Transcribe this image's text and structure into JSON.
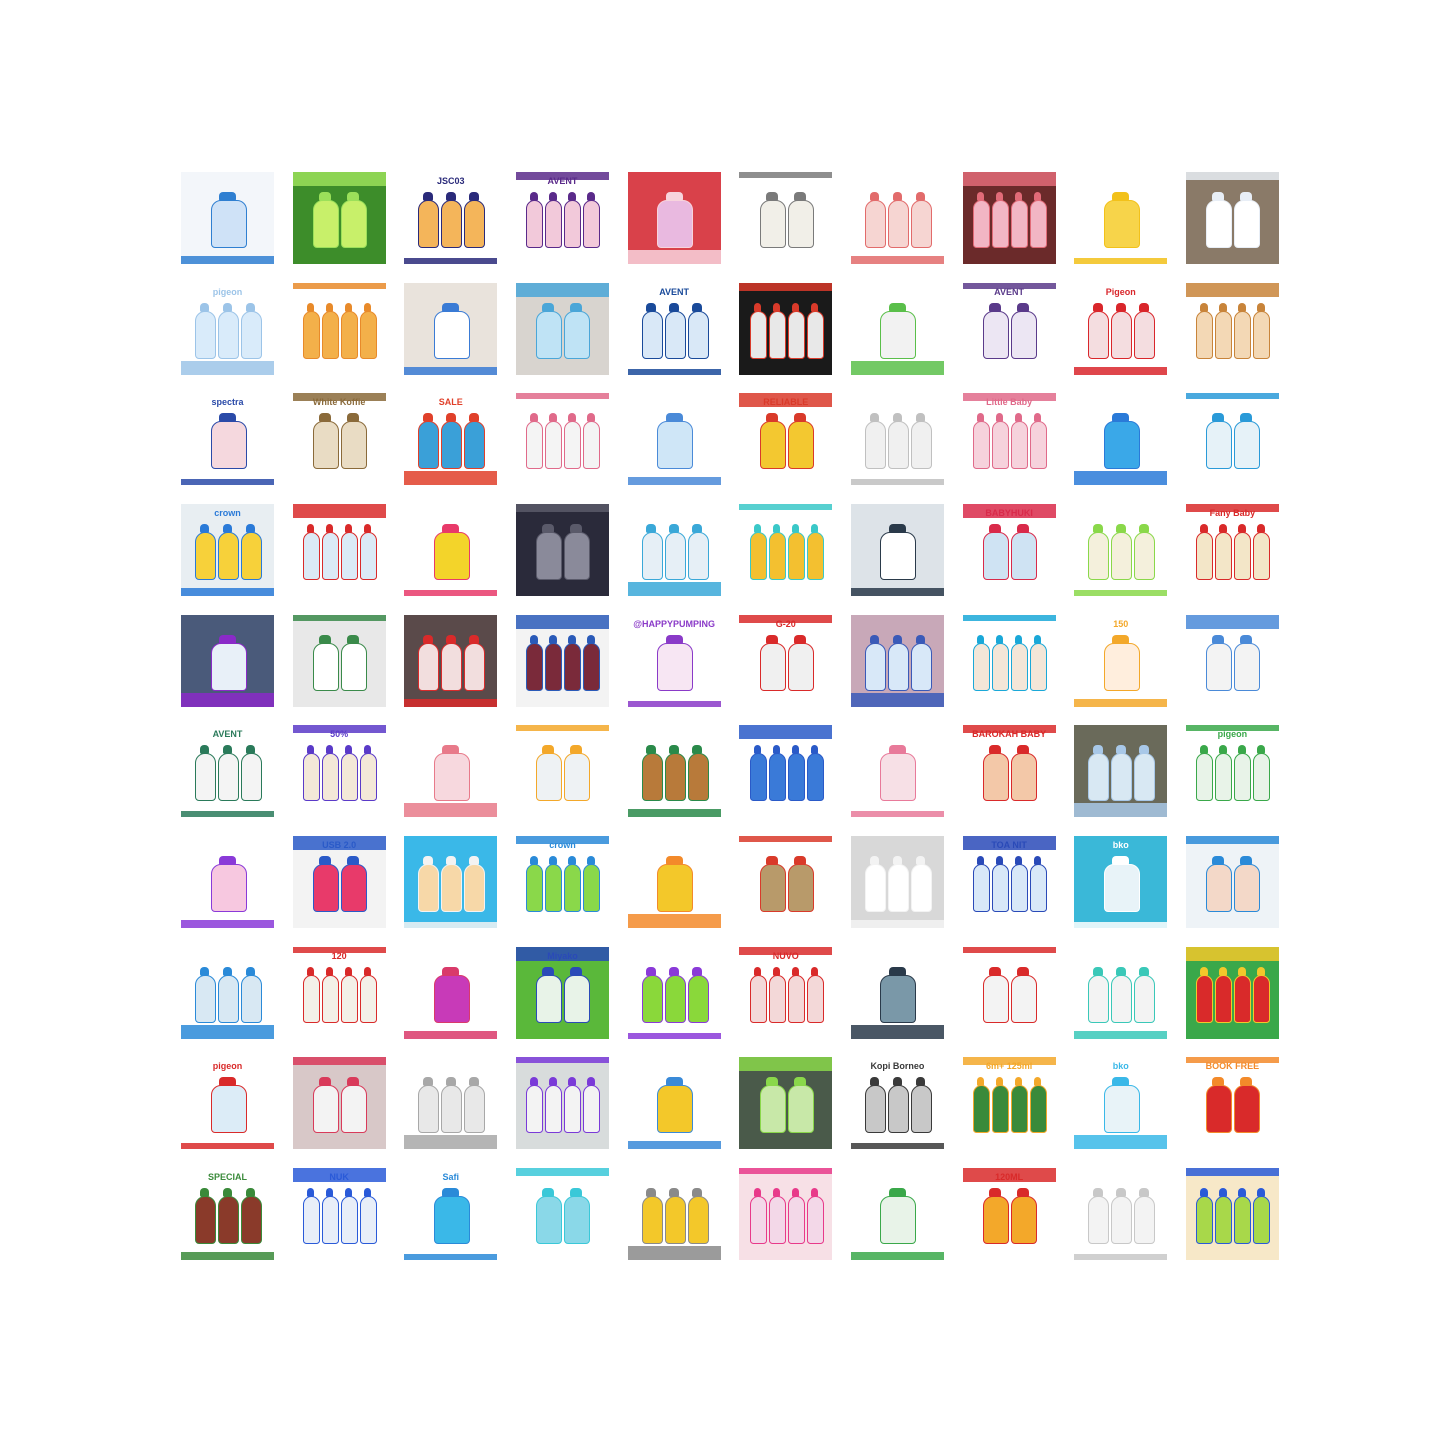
{
  "tiles": [
    {
      "bg": "#f3f6fa",
      "accent": "#2f7fd1",
      "product": "#cfe2f7",
      "text": ""
    },
    {
      "bg": "#3d8d2a",
      "accent": "#9be05a",
      "product": "#c8f06a",
      "text": ""
    },
    {
      "bg": "#ffffff",
      "accent": "#2a2a7a",
      "product": "#f4b55a",
      "text": "JSC03"
    },
    {
      "bg": "#ffffff",
      "accent": "#5a2a8a",
      "product": "#f2c9da",
      "text": "AVENT"
    },
    {
      "bg": "#d9414a",
      "accent": "#f7d4dd",
      "product": "#e9b9e0",
      "text": ""
    },
    {
      "bg": "#ffffff",
      "accent": "#7a7a7a",
      "product": "#f1efe8",
      "text": ""
    },
    {
      "bg": "#ffffff",
      "accent": "#e26b6b",
      "product": "#f6d5d2",
      "text": ""
    },
    {
      "bg": "#6b2a2a",
      "accent": "#e26b78",
      "product": "#f2b6c4",
      "text": ""
    },
    {
      "bg": "#ffffff",
      "accent": "#f2c11a",
      "product": "#f7d44a",
      "text": ""
    },
    {
      "bg": "#8a7a68",
      "accent": "#e8eef6",
      "product": "#ffffff",
      "text": ""
    },
    {
      "bg": "#ffffff",
      "accent": "#9cc4e8",
      "product": "#d9ebfa",
      "text": "pigeon"
    },
    {
      "bg": "#ffffff",
      "accent": "#e88a2a",
      "product": "#f3b04a",
      "text": ""
    },
    {
      "bg": "#e9e3dc",
      "accent": "#3a7bd5",
      "product": "#ffffff",
      "text": ""
    },
    {
      "bg": "#d8d4cf",
      "accent": "#4aa6d8",
      "product": "#bfe3f5",
      "text": ""
    },
    {
      "bg": "#ffffff",
      "accent": "#1a4a9a",
      "product": "#d9e8f7",
      "text": "AVENT"
    },
    {
      "bg": "#1a1a1a",
      "accent": "#d93a2a",
      "product": "#e8e8e8",
      "text": ""
    },
    {
      "bg": "#ffffff",
      "accent": "#5abf4a",
      "product": "#f2f2f2",
      "text": ""
    },
    {
      "bg": "#ffffff",
      "accent": "#5a3a8a",
      "product": "#ece6f3",
      "text": "AVENT"
    },
    {
      "bg": "#ffffff",
      "accent": "#d9262b",
      "product": "#f4dde0",
      "text": "Pigeon"
    },
    {
      "bg": "#ffffff",
      "accent": "#c8843a",
      "product": "#f3d8b5",
      "text": ""
    },
    {
      "bg": "#ffffff",
      "accent": "#2a4aa8",
      "product": "#f5d8de",
      "text": "spectra"
    },
    {
      "bg": "#ffffff",
      "accent": "#8a6a3a",
      "product": "#e9dcc4",
      "text": "White Koffie"
    },
    {
      "bg": "#ffffff",
      "accent": "#e0402a",
      "product": "#3aa0d8",
      "text": "SALE"
    },
    {
      "bg": "#ffffff",
      "accent": "#e06a8a",
      "product": "#f4f4f4",
      "text": ""
    },
    {
      "bg": "#ffffff",
      "accent": "#4a8ad8",
      "product": "#cfe6f7",
      "text": ""
    },
    {
      "bg": "#ffffff",
      "accent": "#d93a2a",
      "product": "#f3c830",
      "text": "RELIABLE"
    },
    {
      "bg": "#ffffff",
      "accent": "#c0c0c0",
      "product": "#f0f0f0",
      "text": ""
    },
    {
      "bg": "#ffffff",
      "accent": "#e06a8a",
      "product": "#f6d2dc",
      "text": "Little Baby"
    },
    {
      "bg": "#ffffff",
      "accent": "#2a7ad8",
      "product": "#3aa8e8",
      "text": ""
    },
    {
      "bg": "#ffffff",
      "accent": "#2a9ad8",
      "product": "#e6f2f8",
      "text": ""
    },
    {
      "bg": "#e8eef2",
      "accent": "#2a7ad8",
      "product": "#f7d13a",
      "text": "crown"
    },
    {
      "bg": "#ffffff",
      "accent": "#d92a2a",
      "product": "#dbeaf6",
      "text": ""
    },
    {
      "bg": "#ffffff",
      "accent": "#e83a6a",
      "product": "#f3d42a",
      "text": ""
    },
    {
      "bg": "#2a2a3a",
      "accent": "#5a5a6a",
      "product": "#8a8a9a",
      "text": ""
    },
    {
      "bg": "#ffffff",
      "accent": "#3aa8d8",
      "product": "#e6eff6",
      "text": ""
    },
    {
      "bg": "#ffffff",
      "accent": "#3ac8c8",
      "product": "#f3c030",
      "text": ""
    },
    {
      "bg": "#dde3e8",
      "accent": "#2a3a4a",
      "product": "#ffffff",
      "text": ""
    },
    {
      "bg": "#ffffff",
      "accent": "#d92a4a",
      "product": "#cfe3f3",
      "text": "BABYHUKI"
    },
    {
      "bg": "#ffffff",
      "accent": "#8ad84a",
      "product": "#f4f0dc",
      "text": ""
    },
    {
      "bg": "#ffffff",
      "accent": "#d92a2a",
      "product": "#f3e6c8",
      "text": "Fany Baby"
    },
    {
      "bg": "#4a5a7a",
      "accent": "#8a2ac8",
      "product": "#e8f0f8",
      "text": ""
    },
    {
      "bg": "#e8e8e8",
      "accent": "#3a8a4a",
      "product": "#ffffff",
      "text": ""
    },
    {
      "bg": "#5a4a4a",
      "accent": "#d92a2a",
      "product": "#f2dede",
      "text": ""
    },
    {
      "bg": "#f3f3f3",
      "accent": "#2a5ab8",
      "product": "#7a2a3a",
      "text": ""
    },
    {
      "bg": "#ffffff",
      "accent": "#8a3ac8",
      "product": "#f7e6f3",
      "text": "@HAPPYPUMPING"
    },
    {
      "bg": "#ffffff",
      "accent": "#d92a2a",
      "product": "#f0f0f0",
      "text": "G-20"
    },
    {
      "bg": "#c8a8b8",
      "accent": "#3a5ab8",
      "product": "#d8e8f8",
      "text": ""
    },
    {
      "bg": "#ffffff",
      "accent": "#1aa8d8",
      "product": "#f3e6d8",
      "text": ""
    },
    {
      "bg": "#ffffff",
      "accent": "#f3a82a",
      "product": "#ffeedd",
      "text": "150"
    },
    {
      "bg": "#ffffff",
      "accent": "#4a8ad8",
      "product": "#f3f3f3",
      "text": ""
    },
    {
      "bg": "#ffffff",
      "accent": "#2a7a5a",
      "product": "#f4f4f4",
      "text": "AVENT"
    },
    {
      "bg": "#ffffff",
      "accent": "#5a3ac8",
      "product": "#f3e8d8",
      "text": "50%"
    },
    {
      "bg": "#ffffff",
      "accent": "#e87a8a",
      "product": "#f7d8de",
      "text": ""
    },
    {
      "bg": "#ffffff",
      "accent": "#f3a82a",
      "product": "#eef2f4",
      "text": ""
    },
    {
      "bg": "#ffffff",
      "accent": "#2a8a4a",
      "product": "#b87a3a",
      "text": ""
    },
    {
      "bg": "#ffffff",
      "accent": "#2a5ac8",
      "product": "#3a7ad8",
      "text": ""
    },
    {
      "bg": "#ffffff",
      "accent": "#e87a9a",
      "product": "#f7e0e6",
      "text": ""
    },
    {
      "bg": "#ffffff",
      "accent": "#d92a2a",
      "product": "#f3c8a8",
      "text": "BAROKAH BABY"
    },
    {
      "bg": "#6a6a5a",
      "accent": "#a8c8e8",
      "product": "#d8e8f3",
      "text": ""
    },
    {
      "bg": "#ffffff",
      "accent": "#3aa84a",
      "product": "#e8f3e8",
      "text": "pigeon"
    },
    {
      "bg": "#ffffff",
      "accent": "#8a3ad8",
      "product": "#f7c8e0",
      "text": ""
    },
    {
      "bg": "#f3f3f3",
      "accent": "#2a5ac8",
      "product": "#e83a6a",
      "text": "USB 2.0"
    },
    {
      "bg": "#3ab8e8",
      "accent": "#f3f3f3",
      "product": "#f7d8a8",
      "text": ""
    },
    {
      "bg": "#ffffff",
      "accent": "#2a8ad8",
      "product": "#8ad84a",
      "text": "crown"
    },
    {
      "bg": "#ffffff",
      "accent": "#f38a2a",
      "product": "#f3c82a",
      "text": ""
    },
    {
      "bg": "#ffffff",
      "accent": "#d93a2a",
      "product": "#b89a6a",
      "text": ""
    },
    {
      "bg": "#d8d8d8",
      "accent": "#f3f3f3",
      "product": "#ffffff",
      "text": ""
    },
    {
      "bg": "#ffffff",
      "accent": "#2a4ab8",
      "product": "#d8e8f8",
      "text": "TOA NIT"
    },
    {
      "bg": "#3ab8d8",
      "accent": "#ffffff",
      "product": "#e8f3f8",
      "text": "bko"
    },
    {
      "bg": "#eef3f7",
      "accent": "#2a8ad8",
      "product": "#f3d8c8",
      "text": ""
    },
    {
      "bg": "#ffffff",
      "accent": "#2a8ad8",
      "product": "#d8e8f3",
      "text": ""
    },
    {
      "bg": "#ffffff",
      "accent": "#d92a2a",
      "product": "#f3f0e8",
      "text": "120"
    },
    {
      "bg": "#ffffff",
      "accent": "#d93a6a",
      "product": "#c83ab8",
      "text": ""
    },
    {
      "bg": "#5ab83a",
      "accent": "#2a4ab8",
      "product": "#e8f3e8",
      "text": "Miyako"
    },
    {
      "bg": "#ffffff",
      "accent": "#8a3ad8",
      "product": "#8ad83a",
      "text": ""
    },
    {
      "bg": "#ffffff",
      "accent": "#d92a2a",
      "product": "#f3d8d8",
      "text": "NUVO"
    },
    {
      "bg": "#ffffff",
      "accent": "#2a3a4a",
      "product": "#7a98a8",
      "text": ""
    },
    {
      "bg": "#ffffff",
      "accent": "#d92a2a",
      "product": "#f3f3f3",
      "text": ""
    },
    {
      "bg": "#ffffff",
      "accent": "#3ac8b8",
      "product": "#f3f3f3",
      "text": ""
    },
    {
      "bg": "#3aa84a",
      "accent": "#f3c82a",
      "product": "#d92a2a",
      "text": ""
    },
    {
      "bg": "#ffffff",
      "accent": "#d92a2a",
      "product": "#dcecf7",
      "text": "pigeon"
    },
    {
      "bg": "#d8c8c8",
      "accent": "#d93a5a",
      "product": "#f3f3f3",
      "text": ""
    },
    {
      "bg": "#ffffff",
      "accent": "#a8a8a8",
      "product": "#e8e8e8",
      "text": ""
    },
    {
      "bg": "#d8dcdc",
      "accent": "#7a3ad8",
      "product": "#f3f3f3",
      "text": ""
    },
    {
      "bg": "#ffffff",
      "accent": "#3a8ad8",
      "product": "#f3c82a",
      "text": ""
    },
    {
      "bg": "#4a5a4a",
      "accent": "#8ad84a",
      "product": "#c8e8a8",
      "text": ""
    },
    {
      "bg": "#ffffff",
      "accent": "#3a3a3a",
      "product": "#c8c8c8",
      "text": "Kopi Borneo"
    },
    {
      "bg": "#ffffff",
      "accent": "#f3a82a",
      "product": "#3a8a3a",
      "text": "6m+ 125ml"
    },
    {
      "bg": "#ffffff",
      "accent": "#3ab8e8",
      "product": "#e8f3f8",
      "text": "bko"
    },
    {
      "bg": "#ffffff",
      "accent": "#f38a2a",
      "product": "#d92a2a",
      "text": "BOOK FREE"
    },
    {
      "bg": "#ffffff",
      "accent": "#3a8a3a",
      "product": "#8a3a2a",
      "text": "SPECIAL"
    },
    {
      "bg": "#ffffff",
      "accent": "#2a5ad8",
      "product": "#e8eef8",
      "text": "NUK"
    },
    {
      "bg": "#ffffff",
      "accent": "#2a8ad8",
      "product": "#3ab8e8",
      "text": "Safi"
    },
    {
      "bg": "#ffffff",
      "accent": "#3ac8d8",
      "product": "#8ad8e8",
      "text": ""
    },
    {
      "bg": "#ffffff",
      "accent": "#8a8a8a",
      "product": "#f3c82a",
      "text": ""
    },
    {
      "bg": "#f7e0e6",
      "accent": "#e83a8a",
      "product": "#f3d8e8",
      "text": ""
    },
    {
      "bg": "#ffffff",
      "accent": "#3aa84a",
      "product": "#e8f3e8",
      "text": ""
    },
    {
      "bg": "#ffffff",
      "accent": "#d92a2a",
      "product": "#f3a82a",
      "text": "120ML"
    },
    {
      "bg": "#ffffff",
      "accent": "#c8c8c8",
      "product": "#f3f3f3",
      "text": ""
    },
    {
      "bg": "#f7e8c8",
      "accent": "#2a5ad8",
      "product": "#a8d84a",
      "text": ""
    }
  ]
}
